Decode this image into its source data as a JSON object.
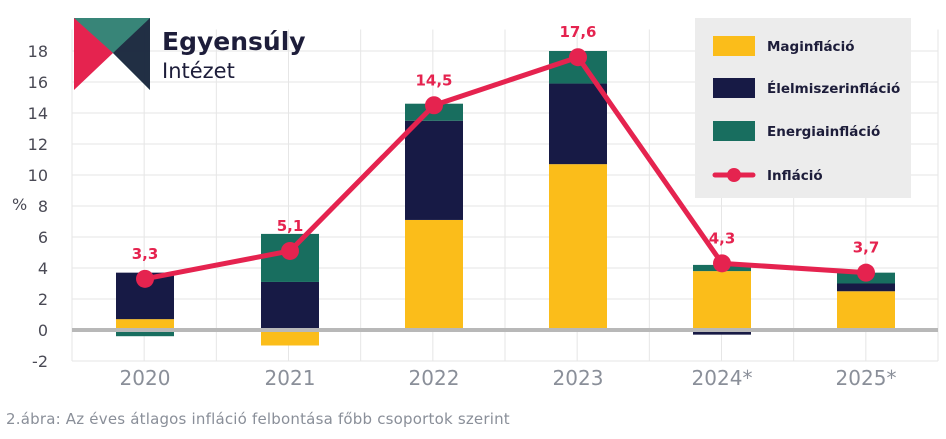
{
  "logo": {
    "line1": "Egyensúly",
    "line2": "Intézet",
    "colors": {
      "red": "#e5234f",
      "teal": "#2e8b7a",
      "navy": "#1d1d3a"
    }
  },
  "caption": "2.ábra: Az éves átlagos infláció felbontása főbb csoportok szerint",
  "chart_data": {
    "type": "bar",
    "stacked": true,
    "categories": [
      "2020",
      "2021",
      "2022",
      "2023",
      "2024*",
      "2025*"
    ],
    "ylabel": "%",
    "ylim": [
      -2,
      19
    ],
    "yticks": [
      -2,
      0,
      2,
      4,
      6,
      8,
      10,
      12,
      14,
      16,
      18
    ],
    "grid": true,
    "legend_position": "top-right",
    "series": [
      {
        "name": "Maginfláció",
        "type": "bar",
        "color": "#fbbd1a",
        "values": [
          0.7,
          -1.0,
          7.1,
          10.7,
          3.8,
          2.5
        ]
      },
      {
        "name": "Élelmiszerinfláció",
        "type": "bar",
        "color": "#171a45",
        "values": [
          3.0,
          3.1,
          6.4,
          5.2,
          -0.3,
          0.5
        ]
      },
      {
        "name": "Energiainfláció",
        "type": "bar",
        "color": "#186e5f",
        "values": [
          -0.4,
          3.1,
          1.1,
          2.1,
          0.4,
          0.7
        ]
      },
      {
        "name": "Infláció",
        "type": "line",
        "color": "#e5234f",
        "values": [
          3.3,
          5.1,
          14.5,
          17.6,
          4.3,
          3.7
        ],
        "labels": [
          "3,3",
          "5,1",
          "14,5",
          "17,6",
          "4,3",
          "3,7"
        ]
      }
    ]
  }
}
